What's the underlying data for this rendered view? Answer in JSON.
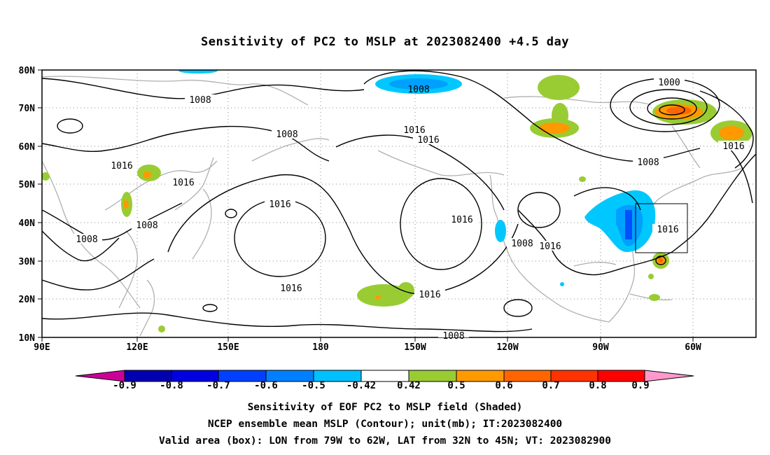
{
  "title": "Sensitivity of PC2 to MSLP at 2023082400 +4.5 day",
  "map": {
    "lat_labels": [
      "80N",
      "70N",
      "60N",
      "50N",
      "40N",
      "30N",
      "20N",
      "10N"
    ],
    "lon_labels": [
      "90E",
      "120E",
      "150E",
      "180",
      "150W",
      "120W",
      "90W",
      "60W"
    ],
    "contour_labels": [
      "1008",
      "1008",
      "1008",
      "1000",
      "1016",
      "1016",
      "1016",
      "1016",
      "1016",
      "1008",
      "1008",
      "1008",
      "1016",
      "1016",
      "1016",
      "1008",
      "1016",
      "1016",
      "1016",
      "1016",
      "1008",
      "1008"
    ],
    "valid_box": {
      "lon_from": "79W",
      "lon_to": "62W",
      "lat_from": "32N",
      "lat_to": "45N"
    },
    "colors": {
      "cyan": "#00c8ff",
      "light_blue": "#00a0ff",
      "blue": "#0050ff",
      "dark_blue": "#0000c0",
      "green": "#99cc33",
      "orange": "#ff9900",
      "dark_orange": "#ff6600",
      "red": "#ff2200",
      "coast": "#b0b0b0",
      "contour": "#000000"
    }
  },
  "colorbar": {
    "labels": [
      "-0.9",
      "-0.8",
      "-0.7",
      "-0.6",
      "-0.5",
      "-0.42",
      "0.42",
      "0.5",
      "0.6",
      "0.7",
      "0.8",
      "0.9"
    ],
    "colors": [
      "#cc0099",
      "#0000b0",
      "#0000e0",
      "#0040ff",
      "#0080ff",
      "#00c0ff",
      "#ffffff",
      "#99cc33",
      "#ff9900",
      "#ff6600",
      "#ff3300",
      "#ff0000",
      "#ff99cc"
    ]
  },
  "captions": {
    "line1": "Sensitivity of EOF PC2 to MSLP field (Shaded)",
    "line2": "NCEP ensemble mean MSLP (Contour); unit(mb); IT:2023082400",
    "line3": "Valid area (box): LON from 79W to 62W, LAT from 32N to 45N; VT: 2023082900"
  }
}
